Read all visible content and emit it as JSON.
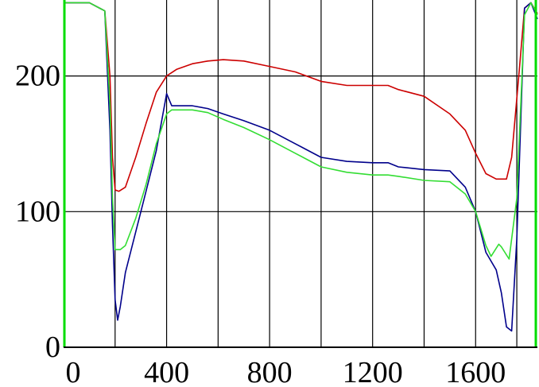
{
  "chart_data": {
    "type": "line",
    "title": "",
    "xlabel": "",
    "ylabel": "",
    "xlim": [
      0,
      1840
    ],
    "ylim": [
      0,
      256
    ],
    "grid": true,
    "x_ticks": [
      {
        "value": 0,
        "label": "0"
      },
      {
        "value": 400,
        "label": "400"
      },
      {
        "value": 800,
        "label": "800"
      },
      {
        "value": 1200,
        "label": "1200"
      },
      {
        "value": 1600,
        "label": "1600"
      }
    ],
    "y_ticks": [
      {
        "value": 0,
        "label": "0"
      },
      {
        "value": 100,
        "label": "100"
      },
      {
        "value": 200,
        "label": "200"
      }
    ],
    "x_gridlines": [
      200,
      400,
      600,
      800,
      1000,
      1200,
      1400,
      1600,
      1760
    ],
    "series": [
      {
        "color": "#cc0000",
        "x": [
          0,
          100,
          160,
          180,
          190,
          200,
          215,
          240,
          280,
          320,
          360,
          400,
          440,
          500,
          560,
          620,
          700,
          800,
          900,
          1000,
          1100,
          1200,
          1260,
          1300,
          1400,
          1500,
          1560,
          1600,
          1640,
          1680,
          1720,
          1740,
          1770,
          1790,
          1815,
          1840
        ],
        "y": [
          254,
          254,
          248,
          200,
          140,
          116,
          115,
          118,
          140,
          165,
          188,
          200,
          205,
          209,
          211,
          212,
          211,
          207,
          203,
          196,
          193,
          193,
          193,
          190,
          185,
          172,
          160,
          143,
          128,
          124,
          124,
          140,
          205,
          250,
          254,
          246
        ]
      },
      {
        "color": "#00008b",
        "x": [
          0,
          100,
          160,
          180,
          190,
          200,
          210,
          220,
          240,
          280,
          320,
          360,
          400,
          420,
          500,
          560,
          620,
          700,
          800,
          900,
          1000,
          1100,
          1200,
          1260,
          1300,
          1400,
          1500,
          1560,
          1600,
          1640,
          1680,
          1700,
          1720,
          1740,
          1760,
          1790,
          1815,
          1840
        ],
        "y": [
          254,
          254,
          248,
          160,
          90,
          35,
          20,
          30,
          55,
          85,
          115,
          145,
          187,
          178,
          178,
          176,
          172,
          167,
          160,
          150,
          140,
          137,
          136,
          136,
          133,
          131,
          130,
          118,
          100,
          70,
          57,
          40,
          15,
          12,
          80,
          250,
          254,
          242
        ]
      },
      {
        "color": "#33dd33",
        "x": [
          0,
          100,
          160,
          180,
          190,
          200,
          220,
          240,
          280,
          320,
          360,
          400,
          420,
          500,
          560,
          620,
          700,
          800,
          900,
          1000,
          1100,
          1200,
          1260,
          1300,
          1400,
          1500,
          1560,
          1600,
          1640,
          1660,
          1690,
          1700,
          1730,
          1760,
          1790,
          1815,
          1840
        ],
        "y": [
          254,
          254,
          248,
          180,
          110,
          72,
          72,
          75,
          95,
          120,
          150,
          172,
          175,
          175,
          173,
          168,
          162,
          153,
          143,
          133,
          129,
          127,
          127,
          126,
          123,
          122,
          113,
          100,
          75,
          67,
          76,
          74,
          65,
          110,
          245,
          254,
          245
        ]
      }
    ]
  }
}
